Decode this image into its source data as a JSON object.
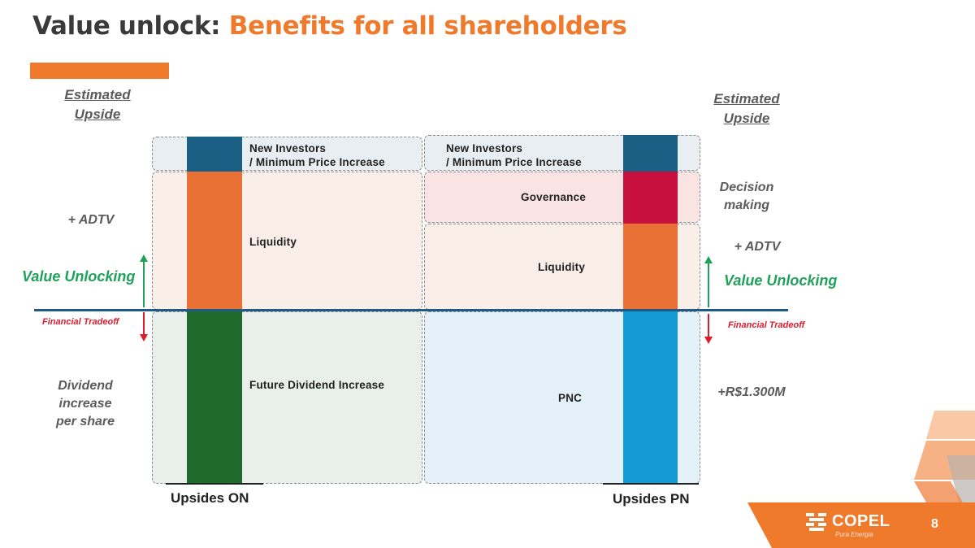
{
  "title": {
    "part1": "Value unlock:",
    "part2": "Benefits for all shareholders"
  },
  "left": {
    "header": "Estimated Upside",
    "adtv": "+ ADTV",
    "value_unlocking": "Value Unlocking",
    "financial_tradeoff": "Financial Tradeoff",
    "dividend": [
      "Dividend",
      "increase",
      "per share"
    ],
    "footer": "Upsides ON",
    "segments": {
      "new_investors": [
        "New Investors",
        "/ Minimum Price Increase"
      ],
      "liquidity": "Liquidity",
      "dividend": "Future Dividend Increase"
    }
  },
  "right": {
    "header": "Estimated Upside",
    "decision": [
      "Decision",
      "making"
    ],
    "adtv": "+ ADTV",
    "value_unlocking": "Value Unlocking",
    "financial_tradeoff": "Financial Tradeoff",
    "amount": "+R$1.300M",
    "footer": "Upsides PN",
    "segments": {
      "new_investors": [
        "New Investors",
        "/ Minimum Price Increase"
      ],
      "governance": "Governance",
      "liquidity": "Liquidity",
      "pnc": "PNC"
    }
  },
  "logo": {
    "name": "COPEL",
    "tagline": "Pura Energia"
  },
  "page_number": "8",
  "colors": {
    "title_dark": "#3a3a3a",
    "title_orange": "#f07a2b",
    "bar_blue_dark": "#1b5e84",
    "bar_orange": "#ea7136",
    "bar_green": "#1e6b2c",
    "bar_red": "#c8103e",
    "bar_cyan": "#149bd6",
    "value_green": "#1fa15a",
    "tradeoff_red": "#e0192b"
  }
}
